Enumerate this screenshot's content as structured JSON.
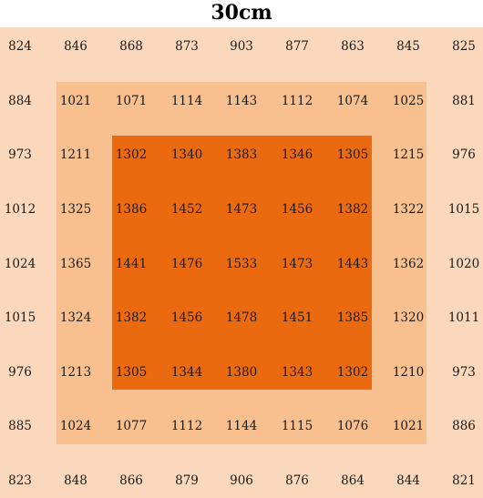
{
  "title": "30cm",
  "colors": {
    "outer_zone": "#fbd8bb",
    "middle_zone": "#f8bf8f",
    "inner_zone": "#ec6a0f",
    "text": "#1a1a1a"
  },
  "grid": [
    [
      "824",
      "846",
      "868",
      "873",
      "903",
      "877",
      "863",
      "845",
      "825"
    ],
    [
      "884",
      "1021",
      "1071",
      "1114",
      "1143",
      "1112",
      "1074",
      "1025",
      "881"
    ],
    [
      "973",
      "1211",
      "1302",
      "1340",
      "1383",
      "1346",
      "1305",
      "1215",
      "976"
    ],
    [
      "1012",
      "1325",
      "1386",
      "1452",
      "1473",
      "1456",
      "1382",
      "1322",
      "1015"
    ],
    [
      "1024",
      "1365",
      "1441",
      "1476",
      "1533",
      "1473",
      "1443",
      "1362",
      "1020"
    ],
    [
      "1015",
      "1324",
      "1382",
      "1456",
      "1478",
      "1451",
      "1385",
      "1320",
      "1011"
    ],
    [
      "976",
      "1213",
      "1305",
      "1344",
      "1380",
      "1343",
      "1302",
      "1210",
      "973"
    ],
    [
      "885",
      "1024",
      "1077",
      "1112",
      "1144",
      "1115",
      "1076",
      "1021",
      "886"
    ],
    [
      "823",
      "848",
      "866",
      "879",
      "906",
      "876",
      "864",
      "844",
      "821"
    ]
  ]
}
